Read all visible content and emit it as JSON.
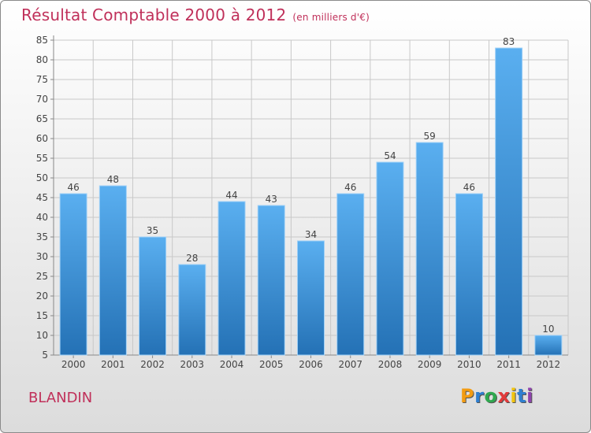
{
  "chart_data": {
    "type": "bar",
    "title": "Résultat Comptable 2000 à 2012",
    "subtitle": "(en milliers d'€)",
    "categories": [
      "2000",
      "2001",
      "2002",
      "2003",
      "2004",
      "2005",
      "2006",
      "2007",
      "2008",
      "2009",
      "2010",
      "2011",
      "2012"
    ],
    "values": [
      46,
      48,
      35,
      28,
      44,
      43,
      34,
      46,
      54,
      59,
      46,
      83,
      10
    ],
    "ylim": [
      5,
      85
    ],
    "yticks": [
      5,
      10,
      15,
      20,
      25,
      30,
      35,
      40,
      45,
      50,
      55,
      60,
      65,
      70,
      75,
      80,
      85
    ],
    "grid": true,
    "bar_color": "#3a8fd6",
    "xlabel": "",
    "ylabel": ""
  },
  "footer": {
    "commune": "BLANDIN",
    "logo_text": "Proxiti",
    "logo_letters": [
      {
        "ch": "P",
        "color": "#f39c12"
      },
      {
        "ch": "r",
        "color": "#2f7fd0"
      },
      {
        "ch": "o",
        "color": "#2fa84f"
      },
      {
        "ch": "x",
        "color": "#e23a3a"
      },
      {
        "ch": "i",
        "color": "#f1c40f"
      },
      {
        "ch": "t",
        "color": "#2f7fd0"
      },
      {
        "ch": "i",
        "color": "#8e44ad"
      }
    ]
  },
  "colors": {
    "title": "#c0305a",
    "grid": "#c8c8c8",
    "axis": "#888888",
    "text": "#444444"
  }
}
